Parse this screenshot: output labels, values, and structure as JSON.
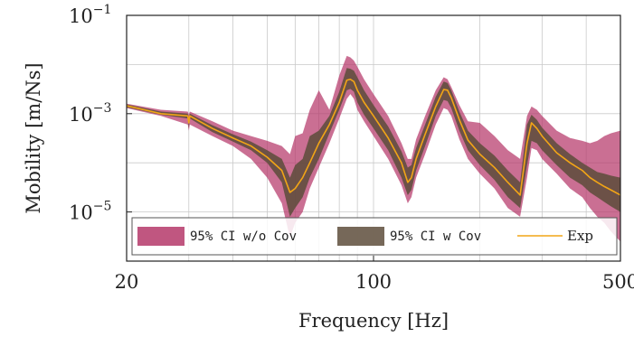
{
  "chart_data": {
    "type": "line",
    "title": "",
    "xlabel": "Frequency [Hz]",
    "ylabel": "Mobility [m/Ns]",
    "x_scale": "log",
    "y_scale": "log",
    "xlim": [
      20,
      500
    ],
    "ylim": [
      1e-06,
      0.1
    ],
    "x_ticks": [
      {
        "value": 20,
        "label": "20"
      },
      {
        "value": 100,
        "label": "100"
      },
      {
        "value": 500,
        "label": "500"
      }
    ],
    "y_ticks": [
      {
        "value": 0.1,
        "base": "10",
        "exp": "−1"
      },
      {
        "value": 0.001,
        "base": "10",
        "exp": "−3"
      },
      {
        "value": 1e-05,
        "base": "10",
        "exp": "−5"
      }
    ],
    "grid": true,
    "legend_position": "bottom",
    "series": [
      {
        "name": "95% CI w/o Cov",
        "kind": "band",
        "color": "#b5386a",
        "x": [
          20,
          25,
          29.8,
          30,
          30.2,
          35,
          40,
          45,
          50,
          55,
          58,
          60,
          63,
          66,
          70,
          75,
          80,
          84,
          86,
          88,
          90,
          94,
          100,
          110,
          120,
          125,
          128,
          132,
          140,
          150,
          158,
          162,
          166,
          175,
          185,
          200,
          220,
          240,
          260,
          272,
          280,
          290,
          300,
          330,
          360,
          390,
          410,
          430,
          450,
          470,
          500
        ],
        "lower": [
          0.0013,
          0.0009,
          0.0006,
          0.00045,
          0.0006,
          0.00035,
          0.00022,
          0.00012,
          5e-05,
          1.5e-05,
          3e-06,
          6e-06,
          1e-05,
          3e-05,
          8e-05,
          0.00025,
          0.0008,
          0.002,
          0.0025,
          0.002,
          0.0012,
          0.0007,
          0.00035,
          0.00012,
          3.5e-05,
          1.5e-05,
          2e-05,
          5e-05,
          0.00015,
          0.0006,
          0.0013,
          0.0012,
          0.0009,
          0.0003,
          0.00012,
          6e-05,
          3e-05,
          1.2e-05,
          8e-06,
          5e-05,
          0.0002,
          0.00018,
          0.00012,
          6e-05,
          3e-05,
          2e-05,
          1.2e-05,
          8e-06,
          6e-06,
          4e-06,
          2.5e-06
        ],
        "upper": [
          0.0016,
          0.0012,
          0.0011,
          0.00095,
          0.0011,
          0.0007,
          0.00045,
          0.00035,
          0.00028,
          0.00022,
          0.00015,
          0.00035,
          0.0004,
          0.0012,
          0.003,
          0.0012,
          0.006,
          0.015,
          0.014,
          0.012,
          0.009,
          0.005,
          0.0025,
          0.0009,
          0.00025,
          0.00012,
          0.00012,
          0.0003,
          0.0009,
          0.003,
          0.0055,
          0.005,
          0.0035,
          0.0015,
          0.0007,
          0.00065,
          0.00035,
          0.00018,
          0.00012,
          0.0009,
          0.0014,
          0.0012,
          0.0009,
          0.00045,
          0.00032,
          0.00028,
          0.00025,
          0.00028,
          0.00035,
          0.0004,
          0.00045
        ]
      },
      {
        "name": "95% CI w Cov",
        "kind": "band",
        "color": "#5e4d3c",
        "x": [
          20,
          25,
          29.8,
          30,
          30.2,
          35,
          40,
          45,
          50,
          55,
          58,
          60,
          63,
          66,
          70,
          75,
          80,
          84,
          86,
          88,
          90,
          94,
          100,
          110,
          120,
          125,
          128,
          132,
          140,
          150,
          158,
          162,
          166,
          175,
          185,
          200,
          220,
          240,
          260,
          272,
          280,
          290,
          300,
          330,
          360,
          390,
          410,
          430,
          450,
          470,
          500
        ],
        "lower": [
          0.00135,
          0.00095,
          0.0008,
          0.0005,
          0.0008,
          0.00042,
          0.00027,
          0.00018,
          0.0001,
          4e-05,
          8e-06,
          1.2e-05,
          2e-05,
          5e-05,
          0.00012,
          0.0004,
          0.0012,
          0.003,
          0.0032,
          0.0028,
          0.0017,
          0.00095,
          0.0005,
          0.00018,
          5e-05,
          2.2e-05,
          2.8e-05,
          7e-05,
          0.00022,
          0.0009,
          0.0019,
          0.0018,
          0.0013,
          0.00045,
          0.00018,
          9e-05,
          4.5e-05,
          2e-05,
          1.2e-05,
          9e-05,
          0.00028,
          0.00025,
          0.00018,
          9e-05,
          5e-05,
          3.5e-05,
          2.5e-05,
          2e-05,
          1.6e-05,
          1.3e-05,
          1e-05
        ],
        "upper": [
          0.00155,
          0.0011,
          0.001,
          0.0008,
          0.001,
          0.00058,
          0.00038,
          0.00027,
          0.00018,
          0.00012,
          5e-05,
          9e-05,
          0.00012,
          0.00035,
          0.00045,
          0.0009,
          0.0028,
          0.0085,
          0.0082,
          0.0075,
          0.0055,
          0.003,
          0.0015,
          0.00055,
          0.00017,
          8e-05,
          9e-05,
          0.0002,
          0.0006,
          0.0022,
          0.0045,
          0.0042,
          0.003,
          0.0011,
          0.00045,
          0.00025,
          0.00014,
          7e-05,
          4e-05,
          0.0006,
          0.00095,
          0.00075,
          0.00052,
          0.00025,
          0.00015,
          0.0001,
          8e-05,
          6.5e-05,
          6e-05,
          5.5e-05,
          5e-05
        ]
      },
      {
        "name": "Exp",
        "kind": "line",
        "color": "#f2a516",
        "x": [
          20,
          25,
          29.8,
          30,
          30.2,
          35,
          40,
          45,
          50,
          55,
          58,
          60,
          63,
          66,
          70,
          75,
          80,
          84,
          86,
          88,
          90,
          94,
          100,
          110,
          120,
          125,
          128,
          132,
          140,
          150,
          158,
          162,
          166,
          175,
          185,
          200,
          220,
          240,
          260,
          272,
          280,
          290,
          300,
          330,
          360,
          390,
          410,
          430,
          450,
          470,
          500
        ],
        "y": [
          0.00145,
          0.001,
          0.0009,
          0.00065,
          0.0009,
          0.0005,
          0.00032,
          0.00022,
          0.00013,
          7e-05,
          2.5e-05,
          3e-05,
          5e-05,
          0.0001,
          0.00025,
          0.0006,
          0.0017,
          0.0048,
          0.005,
          0.0045,
          0.003,
          0.0017,
          0.0009,
          0.00032,
          0.0001,
          4e-05,
          5e-05,
          0.00012,
          0.00038,
          0.0014,
          0.0031,
          0.003,
          0.0021,
          0.00075,
          0.00029,
          0.00015,
          8e-05,
          4e-05,
          2.2e-05,
          0.00025,
          0.00065,
          0.0005,
          0.00035,
          0.00016,
          0.0001,
          7e-05,
          5e-05,
          4e-05,
          3.3e-05,
          2.8e-05,
          2.2e-05
        ]
      }
    ],
    "legend": [
      {
        "label": "95% CI w/o Cov",
        "color": "#b5386a",
        "kind": "band"
      },
      {
        "label": "95% CI w Cov",
        "color": "#5e4d3c",
        "kind": "band"
      },
      {
        "label": "Exp",
        "color": "#f2a516",
        "kind": "line"
      }
    ]
  }
}
